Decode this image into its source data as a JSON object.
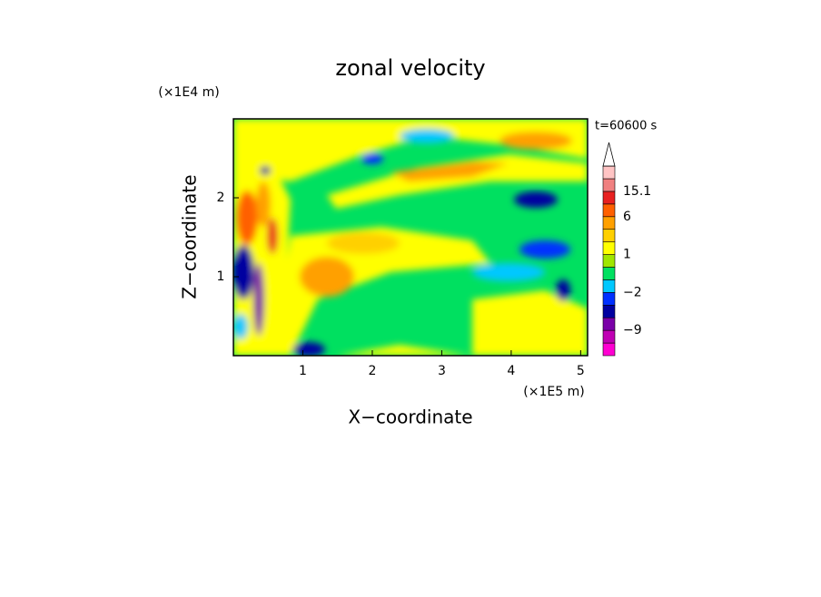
{
  "chart_data": {
    "type": "contour",
    "title": "zonal velocity",
    "x_label": "X−coordinate",
    "y_label": "Z−coordinate",
    "x_unit": "(×1E5 m)",
    "y_unit": "(×1E4 m)",
    "time_label": "t=60600 s",
    "xlim": [
      0,
      5.1
    ],
    "xticks": [
      1,
      2,
      3,
      4,
      5
    ],
    "ylim": [
      0,
      3
    ],
    "yticks": [
      1,
      2
    ],
    "colorbar": {
      "levels": [
        -12,
        -9,
        -6,
        -4,
        -2,
        -1,
        0,
        1,
        2,
        4,
        6,
        9,
        15.1
      ],
      "colors": [
        "#ff00d2",
        "#c000b4",
        "#7a00a8",
        "#0000a0",
        "#0030ff",
        "#00c8ff",
        "#00e060",
        "#a0e600",
        "#ffff00",
        "#ffd000",
        "#ffa000",
        "#ff6000",
        "#e82020",
        "#f08080",
        "#ffc4c4"
      ],
      "extend_color": "#ffffff",
      "ticks": [
        {
          "value": -9,
          "label": "−9"
        },
        {
          "value": -2,
          "label": "−2"
        },
        1,
        6,
        15.1
      ]
    }
  }
}
